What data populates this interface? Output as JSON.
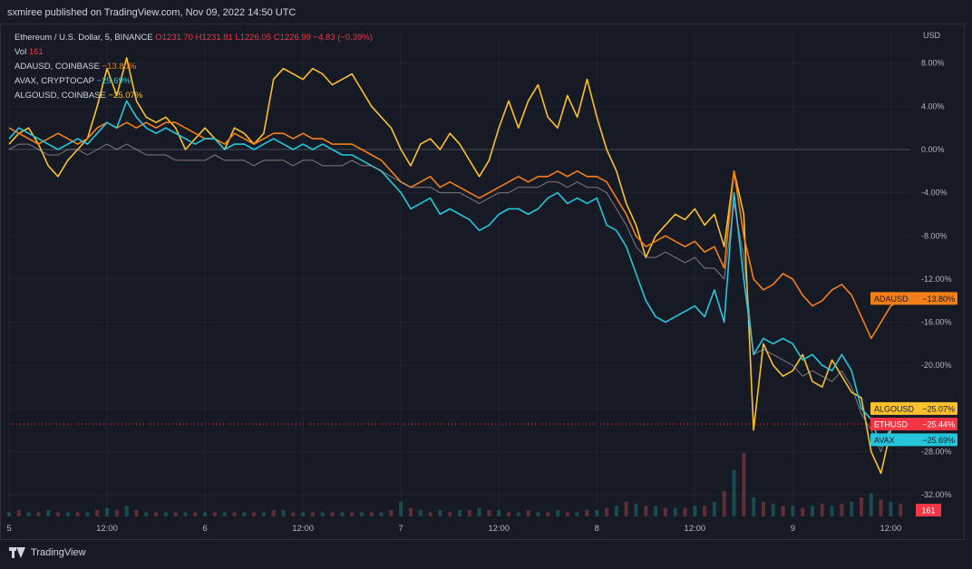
{
  "publisher": "sxmiree published on TradingView.com, Nov 09, 2022 14:50 UTC",
  "footer": {
    "brand": "TradingView"
  },
  "legend": {
    "main_label": "Ethereum / U.S. Dollar, 5, BINANCE",
    "ohlc": "O1231.70 H1231.81 L1226.05 C1226.99 −4.83 (−0.39%)",
    "vol_label": "Vol",
    "vol_value": "161",
    "ada": {
      "label": "ADAUSD, COINBASE",
      "value": "−13.80%"
    },
    "avax": {
      "label": "AVAX, CRYPTOCAP",
      "value": "−25.69%"
    },
    "algo": {
      "label": "ALGOUSD, COINBASE",
      "value": "−25.07%"
    }
  },
  "colors": {
    "ada": "#f57f17",
    "algo": "#fbc02d",
    "avax": "#26c6da",
    "eth": "#b0a3a3",
    "eth_tag": "#f23645",
    "background": "#161a25",
    "grid": "#1f2330",
    "text": "#b2b5be"
  },
  "chart_data": {
    "type": "line",
    "currency_label": "USD",
    "y_unit": "percent change",
    "ylim": [
      -34,
      11
    ],
    "y_ticks": [
      8,
      4,
      0,
      -4,
      -8,
      -12,
      -16,
      -20,
      -24,
      -28,
      -32
    ],
    "y_tick_labels": [
      "8.00%",
      "4.00%",
      "0.00%",
      "-4.00%",
      "-8.00%",
      "-12.00%",
      "-16.00%",
      "-20.00%",
      "-24.00%",
      "-28.00%",
      "-32.00%"
    ],
    "xlim": [
      5.0,
      9.6
    ],
    "x_ticks": [
      5.0,
      5.5,
      6.0,
      6.5,
      7.0,
      7.5,
      8.0,
      8.5,
      9.0,
      9.5
    ],
    "x_tick_labels": [
      "5",
      "12:00",
      "6",
      "12:00",
      "7",
      "12:00",
      "8",
      "12:00",
      "9",
      "12:00"
    ],
    "series": [
      {
        "name": "ALGOUSD",
        "color": "#fbc02d",
        "last_label": "−25.07%",
        "x": [
          5.0,
          5.05,
          5.1,
          5.15,
          5.2,
          5.25,
          5.3,
          5.35,
          5.4,
          5.45,
          5.5,
          5.55,
          5.6,
          5.65,
          5.7,
          5.75,
          5.8,
          5.85,
          5.9,
          5.95,
          6.0,
          6.05,
          6.1,
          6.15,
          6.2,
          6.25,
          6.3,
          6.35,
          6.4,
          6.45,
          6.5,
          6.55,
          6.6,
          6.65,
          6.7,
          6.75,
          6.8,
          6.85,
          6.9,
          6.95,
          7.0,
          7.05,
          7.1,
          7.15,
          7.2,
          7.25,
          7.3,
          7.35,
          7.4,
          7.45,
          7.5,
          7.55,
          7.6,
          7.65,
          7.7,
          7.75,
          7.8,
          7.85,
          7.9,
          7.95,
          8.0,
          8.05,
          8.1,
          8.15,
          8.2,
          8.25,
          8.3,
          8.35,
          8.4,
          8.45,
          8.5,
          8.55,
          8.6,
          8.65,
          8.7,
          8.75,
          8.8,
          8.85,
          8.9,
          8.95,
          9.0,
          9.05,
          9.1,
          9.15,
          9.2,
          9.25,
          9.3,
          9.35,
          9.4,
          9.45,
          9.5,
          9.55
        ],
        "y": [
          0.5,
          1.5,
          2.0,
          0.5,
          -1.5,
          -2.5,
          -1.0,
          0.0,
          1.0,
          4.0,
          7.5,
          5.0,
          8.5,
          4.5,
          3.0,
          2.5,
          3.0,
          2.0,
          0.0,
          1.0,
          2.0,
          1.0,
          0.0,
          2.0,
          1.5,
          0.5,
          1.5,
          6.5,
          7.5,
          7.0,
          6.5,
          7.5,
          7.0,
          6.0,
          6.5,
          7.0,
          5.5,
          4.0,
          3.0,
          2.0,
          0.0,
          -1.5,
          0.5,
          1.0,
          0.0,
          1.5,
          0.5,
          -1.0,
          -2.5,
          -1.0,
          2.0,
          4.5,
          2.0,
          4.5,
          6.0,
          3.0,
          2.0,
          5.0,
          3.0,
          6.5,
          3.0,
          0.0,
          -2.0,
          -5.0,
          -7.0,
          -10.0,
          -8.0,
          -7.0,
          -6.0,
          -6.5,
          -5.5,
          -7.0,
          -6.0,
          -9.0,
          -2.0,
          -6.0,
          -26.0,
          -18.0,
          -20.0,
          -21.0,
          -20.5,
          -19.0,
          -21.5,
          -22.0,
          -19.5,
          -21.0,
          -22.5,
          -23.0,
          -28.0,
          -30.0,
          -26.0,
          -25.0
        ]
      },
      {
        "name": "ADAUSD",
        "color": "#f57f17",
        "last_label": "−13.80%",
        "x": [
          5.0,
          5.05,
          5.1,
          5.15,
          5.2,
          5.25,
          5.3,
          5.35,
          5.4,
          5.45,
          5.5,
          5.55,
          5.6,
          5.65,
          5.7,
          5.75,
          5.8,
          5.85,
          5.9,
          5.95,
          6.0,
          6.05,
          6.1,
          6.15,
          6.2,
          6.25,
          6.3,
          6.35,
          6.4,
          6.45,
          6.5,
          6.55,
          6.6,
          6.65,
          6.7,
          6.75,
          6.8,
          6.85,
          6.9,
          6.95,
          7.0,
          7.05,
          7.1,
          7.15,
          7.2,
          7.25,
          7.3,
          7.35,
          7.4,
          7.45,
          7.5,
          7.55,
          7.6,
          7.65,
          7.7,
          7.75,
          7.8,
          7.85,
          7.9,
          7.95,
          8.0,
          8.05,
          8.1,
          8.15,
          8.2,
          8.25,
          8.3,
          8.35,
          8.4,
          8.45,
          8.5,
          8.55,
          8.6,
          8.65,
          8.7,
          8.75,
          8.8,
          8.85,
          8.9,
          8.95,
          9.0,
          9.05,
          9.1,
          9.15,
          9.2,
          9.25,
          9.3,
          9.35,
          9.4,
          9.45,
          9.5,
          9.55
        ],
        "y": [
          2.0,
          1.5,
          1.0,
          0.5,
          1.0,
          1.5,
          1.0,
          0.5,
          1.0,
          2.0,
          2.5,
          2.0,
          2.5,
          2.0,
          2.5,
          2.0,
          2.5,
          2.5,
          2.0,
          1.5,
          1.0,
          1.0,
          0.5,
          1.5,
          1.0,
          0.5,
          1.0,
          1.5,
          1.5,
          1.0,
          1.5,
          1.0,
          1.0,
          0.5,
          0.5,
          0.5,
          0.0,
          -0.5,
          -1.0,
          -2.0,
          -3.0,
          -3.5,
          -3.0,
          -2.5,
          -3.5,
          -3.0,
          -3.5,
          -4.0,
          -4.5,
          -4.0,
          -3.5,
          -3.0,
          -2.5,
          -3.0,
          -2.5,
          -2.5,
          -2.0,
          -2.5,
          -2.0,
          -2.5,
          -2.5,
          -3.0,
          -4.5,
          -6.0,
          -8.0,
          -9.0,
          -8.5,
          -8.0,
          -8.5,
          -9.0,
          -8.5,
          -9.5,
          -9.0,
          -11.0,
          -2.0,
          -8.0,
          -12.0,
          -13.0,
          -12.5,
          -11.5,
          -12.0,
          -13.5,
          -14.5,
          -14.0,
          -13.0,
          -12.5,
          -13.5,
          -15.5,
          -17.5,
          -16.0,
          -14.5,
          -14.0
        ]
      },
      {
        "name": "AVAX",
        "color": "#26c6da",
        "last_label": "−25.69%",
        "x": [
          5.0,
          5.05,
          5.1,
          5.15,
          5.2,
          5.25,
          5.3,
          5.35,
          5.4,
          5.45,
          5.5,
          5.55,
          5.6,
          5.65,
          5.7,
          5.75,
          5.8,
          5.85,
          5.9,
          5.95,
          6.0,
          6.05,
          6.1,
          6.15,
          6.2,
          6.25,
          6.3,
          6.35,
          6.4,
          6.45,
          6.5,
          6.55,
          6.6,
          6.65,
          6.7,
          6.75,
          6.8,
          6.85,
          6.9,
          6.95,
          7.0,
          7.05,
          7.1,
          7.15,
          7.2,
          7.25,
          7.3,
          7.35,
          7.4,
          7.45,
          7.5,
          7.55,
          7.6,
          7.65,
          7.7,
          7.75,
          7.8,
          7.85,
          7.9,
          7.95,
          8.0,
          8.05,
          8.1,
          8.15,
          8.2,
          8.25,
          8.3,
          8.35,
          8.4,
          8.45,
          8.5,
          8.55,
          8.6,
          8.65,
          8.7,
          8.75,
          8.8,
          8.85,
          8.9,
          8.95,
          9.0,
          9.05,
          9.1,
          9.15,
          9.2,
          9.25,
          9.3,
          9.35,
          9.4,
          9.45,
          9.5,
          9.55
        ],
        "y": [
          1.0,
          2.0,
          1.5,
          1.0,
          0.5,
          0.0,
          0.5,
          1.0,
          0.5,
          1.5,
          2.5,
          2.0,
          4.5,
          3.0,
          2.0,
          1.5,
          2.0,
          1.5,
          1.0,
          0.5,
          1.0,
          1.0,
          0.0,
          0.5,
          0.5,
          0.0,
          0.5,
          1.0,
          0.5,
          0.0,
          0.5,
          0.0,
          0.5,
          0.0,
          -0.5,
          -0.5,
          -1.0,
          -1.5,
          -2.0,
          -3.0,
          -4.0,
          -5.5,
          -5.0,
          -4.5,
          -6.0,
          -5.5,
          -6.0,
          -6.5,
          -7.5,
          -7.0,
          -6.0,
          -5.5,
          -5.5,
          -6.0,
          -5.5,
          -4.5,
          -4.0,
          -5.0,
          -4.5,
          -5.0,
          -4.5,
          -7.0,
          -7.5,
          -9.0,
          -11.5,
          -14.0,
          -15.5,
          -16.0,
          -15.5,
          -15.0,
          -14.5,
          -15.5,
          -13.0,
          -16.0,
          -4.0,
          -12.0,
          -19.0,
          -17.5,
          -18.0,
          -17.5,
          -18.0,
          -19.5,
          -19.0,
          -20.0,
          -20.5,
          -19.0,
          -20.5,
          -24.0,
          -25.0,
          -27.5,
          -26.0,
          -25.7
        ]
      },
      {
        "name": "ETHUSD",
        "color": "#b0a3a3",
        "last_label": "−25.44%",
        "x": [
          5.0,
          5.05,
          5.1,
          5.15,
          5.2,
          5.25,
          5.3,
          5.35,
          5.4,
          5.45,
          5.5,
          5.55,
          5.6,
          5.65,
          5.7,
          5.75,
          5.8,
          5.85,
          5.9,
          5.95,
          6.0,
          6.05,
          6.1,
          6.15,
          6.2,
          6.25,
          6.3,
          6.35,
          6.4,
          6.45,
          6.5,
          6.55,
          6.6,
          6.65,
          6.7,
          6.75,
          6.8,
          6.85,
          6.9,
          6.95,
          7.0,
          7.05,
          7.1,
          7.15,
          7.2,
          7.25,
          7.3,
          7.35,
          7.4,
          7.45,
          7.5,
          7.55,
          7.6,
          7.65,
          7.7,
          7.75,
          7.8,
          7.85,
          7.9,
          7.95,
          8.0,
          8.05,
          8.1,
          8.15,
          8.2,
          8.25,
          8.3,
          8.35,
          8.4,
          8.45,
          8.5,
          8.55,
          8.6,
          8.65,
          8.7,
          8.75,
          8.8,
          8.85,
          8.9,
          8.95,
          9.0,
          9.05,
          9.1,
          9.15,
          9.2,
          9.25,
          9.3,
          9.35,
          9.4,
          9.45,
          9.5,
          9.55
        ],
        "y": [
          0.0,
          0.5,
          0.5,
          0.0,
          -0.5,
          -0.5,
          0.0,
          0.0,
          -0.5,
          0.0,
          0.5,
          0.0,
          0.5,
          0.0,
          -0.5,
          -0.5,
          -0.5,
          -1.0,
          -1.0,
          -1.0,
          -1.0,
          -0.5,
          -1.0,
          -1.0,
          -1.0,
          -1.5,
          -1.0,
          -1.0,
          -1.0,
          -1.5,
          -1.0,
          -1.0,
          -1.5,
          -1.5,
          -1.5,
          -1.0,
          -1.5,
          -1.5,
          -2.0,
          -2.5,
          -3.0,
          -3.5,
          -3.5,
          -3.5,
          -4.0,
          -4.0,
          -4.0,
          -4.5,
          -5.0,
          -4.5,
          -4.0,
          -4.0,
          -3.5,
          -3.5,
          -3.5,
          -3.0,
          -3.0,
          -3.5,
          -3.0,
          -3.5,
          -3.5,
          -4.0,
          -5.5,
          -7.0,
          -9.0,
          -10.0,
          -10.0,
          -9.5,
          -10.0,
          -10.5,
          -10.0,
          -11.0,
          -11.0,
          -12.0,
          -5.0,
          -10.0,
          -19.0,
          -18.5,
          -19.0,
          -19.5,
          -20.0,
          -21.0,
          -20.5,
          -21.0,
          -21.5,
          -20.5,
          -22.0,
          -24.5,
          -26.0,
          -28.0,
          -25.5,
          -25.44
        ]
      }
    ],
    "price_tags": [
      {
        "label": "ADAUSD",
        "value": "−13.80%",
        "y": -13.8,
        "color": "#f57f17"
      },
      {
        "label": "ALGOUSD",
        "value": "−25.07%",
        "y": -24.0,
        "color": "#fbc02d"
      },
      {
        "label": "ETHUSD",
        "value": "−25.44%",
        "y": -25.44,
        "color": "#f23645"
      },
      {
        "label": "AVAX",
        "value": "−25.69%",
        "y": -26.9,
        "color": "#26c6da"
      }
    ],
    "volume_tag": {
      "value": "161",
      "color": "#f23645"
    },
    "volume": {
      "x": [
        5.0,
        5.05,
        5.1,
        5.15,
        5.2,
        5.25,
        5.3,
        5.35,
        5.4,
        5.45,
        5.5,
        5.55,
        5.6,
        5.65,
        5.7,
        5.75,
        5.8,
        5.85,
        5.9,
        5.95,
        6.0,
        6.05,
        6.1,
        6.15,
        6.2,
        6.25,
        6.3,
        6.35,
        6.4,
        6.45,
        6.5,
        6.55,
        6.6,
        6.65,
        6.7,
        6.75,
        6.8,
        6.85,
        6.9,
        6.95,
        7.0,
        7.05,
        7.1,
        7.15,
        7.2,
        7.25,
        7.3,
        7.35,
        7.4,
        7.45,
        7.5,
        7.55,
        7.6,
        7.65,
        7.7,
        7.75,
        7.8,
        7.85,
        7.9,
        7.95,
        8.0,
        8.05,
        8.1,
        8.15,
        8.2,
        8.25,
        8.3,
        8.35,
        8.4,
        8.45,
        8.5,
        8.55,
        8.6,
        8.65,
        8.7,
        8.75,
        8.8,
        8.85,
        8.9,
        8.95,
        9.0,
        9.05,
        9.1,
        9.15,
        9.2,
        9.25,
        9.3,
        9.35,
        9.4,
        9.45,
        9.5,
        9.55
      ],
      "v": [
        2,
        3,
        2,
        2,
        3,
        2,
        2,
        2,
        2,
        3,
        4,
        3,
        5,
        3,
        2,
        2,
        2,
        2,
        2,
        2,
        2,
        2,
        2,
        2,
        2,
        2,
        2,
        3,
        3,
        2,
        2,
        2,
        2,
        2,
        2,
        2,
        2,
        2,
        2,
        3,
        7,
        4,
        3,
        2,
        3,
        2,
        3,
        3,
        4,
        3,
        3,
        2,
        2,
        3,
        2,
        2,
        3,
        2,
        2,
        3,
        3,
        4,
        5,
        7,
        6,
        5,
        5,
        4,
        4,
        4,
        5,
        5,
        7,
        12,
        22,
        30,
        9,
        7,
        6,
        5,
        5,
        4,
        5,
        6,
        5,
        6,
        7,
        9,
        11,
        8,
        7,
        6
      ]
    }
  }
}
